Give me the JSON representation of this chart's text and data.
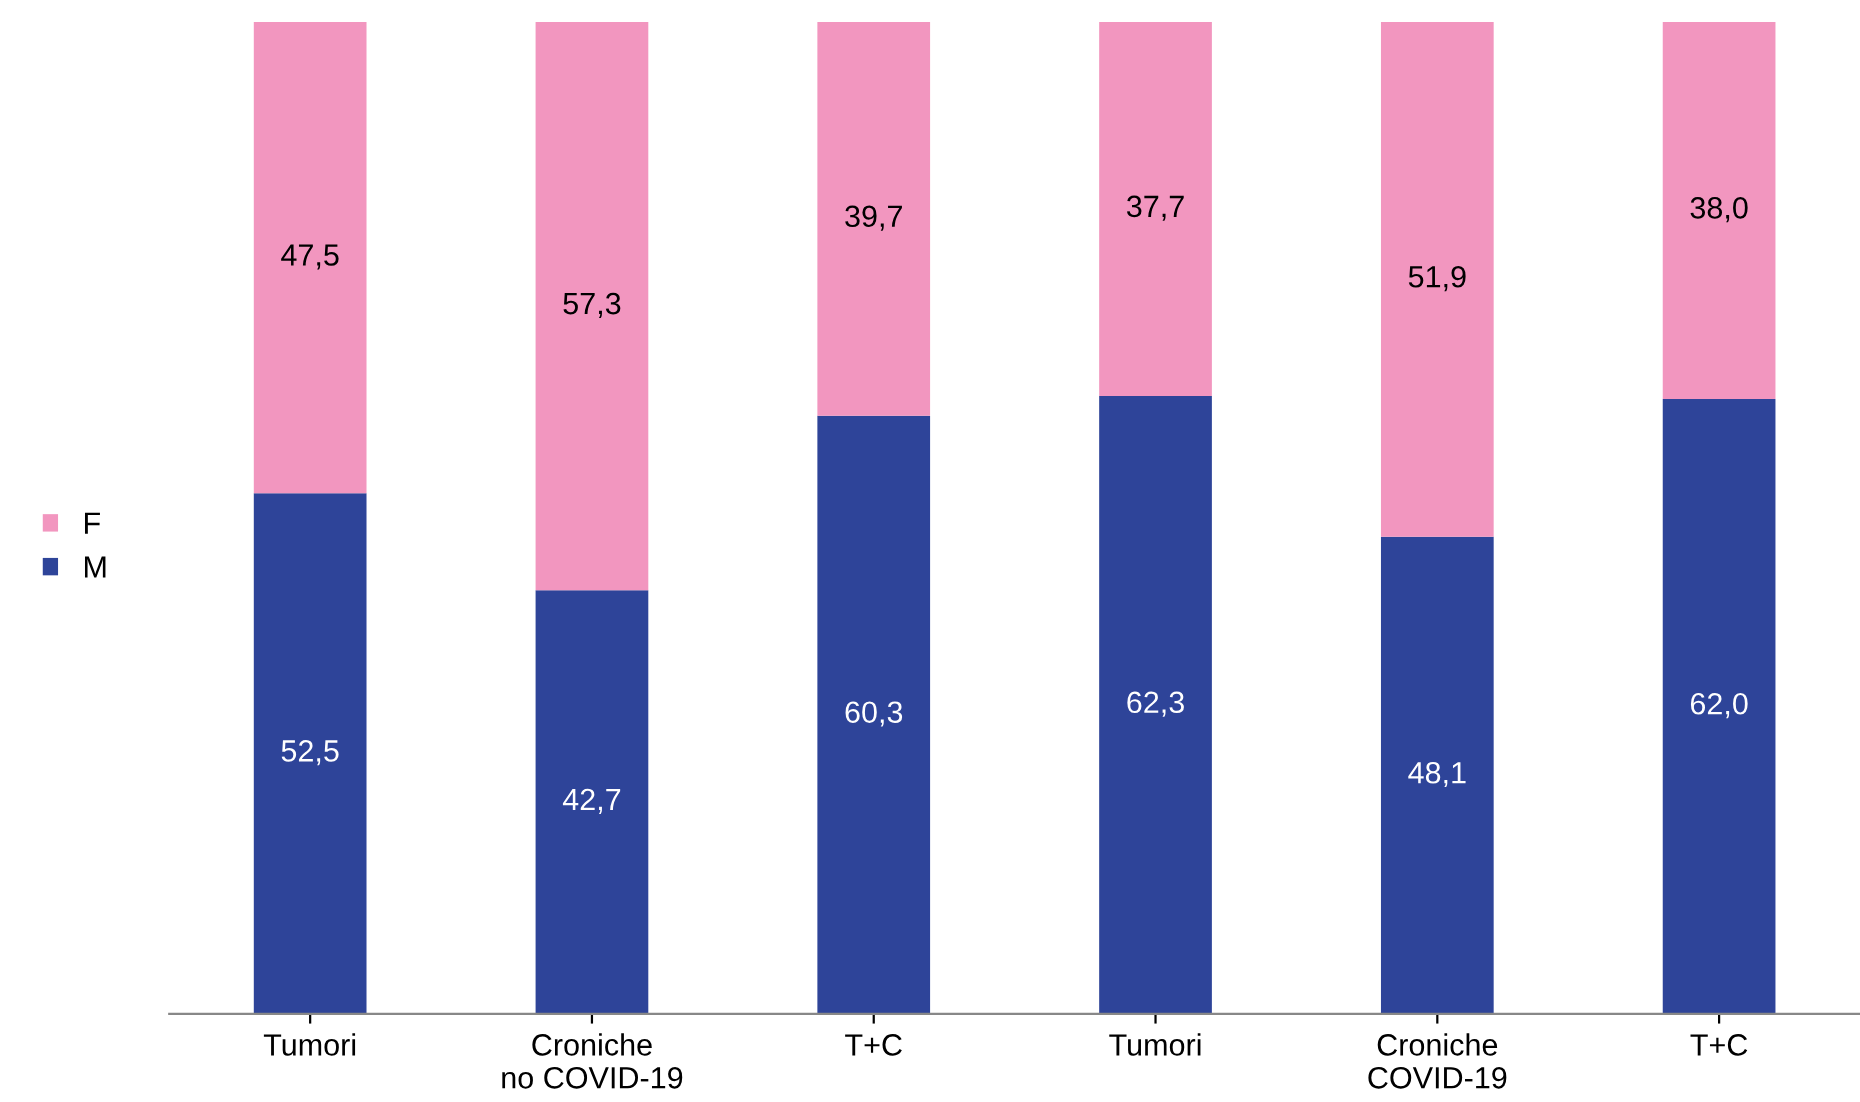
{
  "chart_data": {
    "type": "bar",
    "stacked": true,
    "categories": [
      "Tumori",
      "Croniche\nno COVID-19",
      "T+C",
      "Tumori",
      "Croniche\nCOVID-19",
      "T+C"
    ],
    "series": [
      {
        "name": "M",
        "color": "#2e4499",
        "values": [
          52.5,
          42.7,
          60.3,
          62.3,
          48.1,
          62.0
        ],
        "value_labels": [
          "52,5",
          "42,7",
          "60,3",
          "62,3",
          "48,1",
          "62,0"
        ]
      },
      {
        "name": "F",
        "color": "#f296bf",
        "values": [
          47.5,
          57.3,
          39.7,
          37.7,
          51.9,
          38.0
        ],
        "value_labels": [
          "47,5",
          "57,3",
          "39,7",
          "37,7",
          "51,9",
          "38,0"
        ]
      }
    ],
    "legend": "left",
    "tick_labels": "x",
    "grid": false
  }
}
